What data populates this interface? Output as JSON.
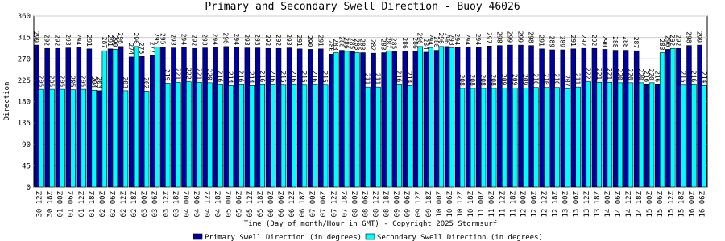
{
  "chart_data": {
    "type": "bar",
    "title": "Primary and Secondary Swell Direction - Buoy 46026",
    "x_label": "Time (Day of month/Hour in GMT) - Copyright 2025 Stormsurf",
    "y_label": "Direction",
    "categories": [
      "30 12Z",
      "30 18Z",
      "01 00Z",
      "01 06Z",
      "01 12Z",
      "01 18Z",
      "02 00Z",
      "02 06Z",
      "02 12Z",
      "02 18Z",
      "03 00Z",
      "03 06Z",
      "03 12Z",
      "03 18Z",
      "04 00Z",
      "04 06Z",
      "04 12Z",
      "04 18Z",
      "05 00Z",
      "05 06Z",
      "05 12Z",
      "05 18Z",
      "06 00Z",
      "06 06Z",
      "06 12Z",
      "06 18Z",
      "07 00Z",
      "07 06Z",
      "07 12Z",
      "07 18Z",
      "08 00Z",
      "08 06Z",
      "08 12Z",
      "08 18Z",
      "09 00Z",
      "09 06Z",
      "09 12Z",
      "09 18Z",
      "10 00Z",
      "10 06Z",
      "10 12Z",
      "10 18Z",
      "11 00Z",
      "11 06Z",
      "11 12Z",
      "11 18Z",
      "12 00Z",
      "12 06Z",
      "12 12Z",
      "12 18Z",
      "13 00Z",
      "13 06Z",
      "13 12Z",
      "13 18Z",
      "14 00Z",
      "14 06Z",
      "14 12Z",
      "14 18Z",
      "15 00Z",
      "15 06Z",
      "15 12Z",
      "15 18Z",
      "16 00Z",
      "16 06Z"
    ],
    "series": [
      {
        "name": "Primary Swell Direction (in degrees)",
        "color": "#0000a0",
        "values": [
          299,
          292,
          292,
          293,
          294,
          291,
          203,
          291,
          296,
          274,
          275,
          277,
          295,
          293,
          294,
          292,
          293,
          294,
          296,
          294,
          293,
          293,
          292,
          292,
          293,
          291,
          290,
          291,
          280,
          288,
          285,
          283,
          282,
          283,
          285,
          286,
          286,
          284,
          288,
          296,
          294,
          294,
          294,
          297,
          298,
          299,
          299,
          298,
          291,
          289,
          289,
          291,
          292,
          292,
          290,
          288,
          288,
          287,
          216,
          216,
          290,
          292,
          298,
          299
        ]
      },
      {
        "name": "Secondary Swell Direction (in degrees)",
        "color": "#00ffff",
        "values": [
          206,
          206,
          206,
          205,
          206,
          204,
          287,
          290,
          203,
          296,
          202,
          295,
          219,
          221,
          222,
          221,
          220,
          216,
          214,
          216,
          214,
          216,
          216,
          215,
          216,
          215,
          216,
          215,
          283,
          286,
          283,
          211,
          211,
          287,
          216,
          214,
          296,
          294,
          296,
          293,
          208,
          208,
          208,
          208,
          209,
          209,
          209,
          210,
          210,
          210,
          207,
          211,
          222,
          221,
          221,
          220,
          220,
          220,
          220,
          283,
          292,
          215,
          216,
          214
        ]
      }
    ],
    "ylim": [
      0,
      360
    ],
    "yticks": [
      0,
      45,
      90,
      135,
      180,
      225,
      270,
      315,
      360
    ],
    "grid": true
  }
}
